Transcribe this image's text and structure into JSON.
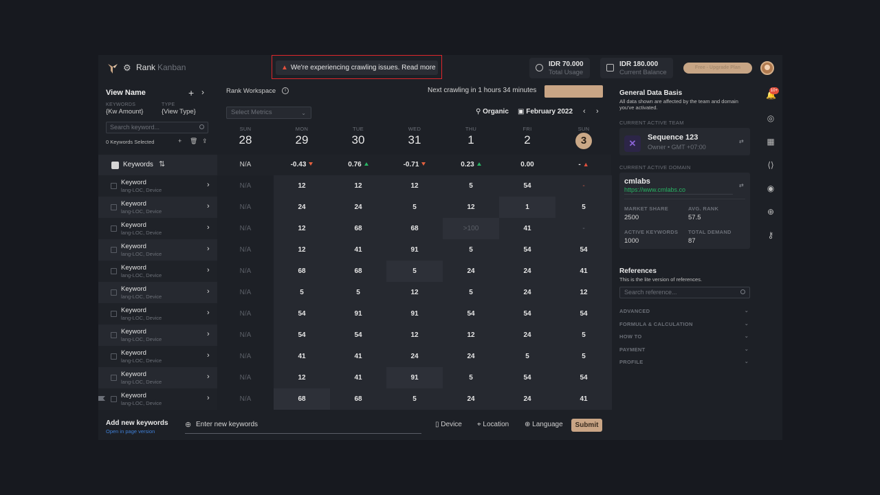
{
  "app": {
    "title": "Rank",
    "subtitle": "Kanban"
  },
  "alert": {
    "text": "We're experiencing crawling issues. Read more"
  },
  "usage": {
    "total": {
      "amount": "IDR 70.000",
      "label": "Total Usage"
    },
    "balance": {
      "amount": "IDR 180.000",
      "label": "Current Balance"
    }
  },
  "upgrade_label": "Free - Upgrade Plan",
  "left": {
    "view_name": "View Name",
    "keywords_label": "KEYWORDS",
    "keywords_value": "{Kw Amount}",
    "type_label": "TYPE",
    "type_value": "{View Type}",
    "search_placeholder": "Search keyword...",
    "selected": "0 Keywords Selected",
    "header": "Keywords"
  },
  "keywords": [
    {
      "name": "Keyword",
      "meta": "lang-LOC, Device"
    },
    {
      "name": "Keyword",
      "meta": "lang-LOC, Device"
    },
    {
      "name": "Keyword",
      "meta": "lang-LOC, Device"
    },
    {
      "name": "Keyword",
      "meta": "lang-LOC, Device"
    },
    {
      "name": "Keyword",
      "meta": "lang-LOC, Device"
    },
    {
      "name": "Keyword",
      "meta": "lang-LOC, Device"
    },
    {
      "name": "Keyword",
      "meta": "lang-LOC, Device"
    },
    {
      "name": "Keyword",
      "meta": "lang-LOC, Device"
    },
    {
      "name": "Keyword",
      "meta": "lang-LOC, Device"
    },
    {
      "name": "Keyword",
      "meta": "lang-LOC, Device"
    },
    {
      "name": "Keyword",
      "meta": "lang-LOC, Device"
    }
  ],
  "workspace": {
    "title": "Rank Workspace",
    "next_crawl": "Next crawling in 1 hours 34 minutes",
    "select_metrics": "Select Metrics",
    "type": "Organic",
    "month": "February 2022"
  },
  "days": [
    {
      "name": "SUN",
      "date": "28"
    },
    {
      "name": "MON",
      "date": "29"
    },
    {
      "name": "TUE",
      "date": "30"
    },
    {
      "name": "WED",
      "date": "31"
    },
    {
      "name": "THU",
      "date": "1"
    },
    {
      "name": "FRI",
      "date": "2"
    },
    {
      "name": "SUN",
      "date": "3"
    }
  ],
  "summary": [
    "N/A",
    "-0.43",
    "0.76",
    "-0.71",
    "0.23",
    "0.00",
    "-"
  ],
  "summary_trend": [
    "none",
    "down",
    "up",
    "down",
    "up",
    "none",
    "warn"
  ],
  "grid": [
    [
      "N/A",
      "12",
      "12",
      "12",
      "5",
      "54",
      "-"
    ],
    [
      "N/A",
      "24",
      "24",
      "5",
      "12",
      "1",
      "5"
    ],
    [
      "N/A",
      "12",
      "68",
      "68",
      ">100",
      "41",
      "-"
    ],
    [
      "N/A",
      "12",
      "41",
      "91",
      "5",
      "54",
      "54"
    ],
    [
      "N/A",
      "68",
      "68",
      "5",
      "24",
      "24",
      "41"
    ],
    [
      "N/A",
      "5",
      "5",
      "12",
      "5",
      "24",
      "12"
    ],
    [
      "N/A",
      "54",
      "91",
      "91",
      "54",
      "54",
      "54"
    ],
    [
      "N/A",
      "54",
      "54",
      "12",
      "12",
      "24",
      "5"
    ],
    [
      "N/A",
      "41",
      "41",
      "24",
      "24",
      "5",
      "5"
    ],
    [
      "N/A",
      "12",
      "41",
      "91",
      "5",
      "54",
      "54"
    ],
    [
      "N/A",
      "68",
      "68",
      "5",
      "24",
      "24",
      "41"
    ]
  ],
  "bottom": {
    "add_title": "Add new keywords",
    "open_page": "Open in page version",
    "input_placeholder": "Enter new keywords",
    "device": "Device",
    "location": "Location",
    "language": "Language",
    "submit": "Submit"
  },
  "right": {
    "title": "General Data Basis",
    "desc": "All data shown are affected by the team and domain you've activated.",
    "team_section": "CURRENT ACTIVE TEAM",
    "team_name": "Sequence 123",
    "team_sub": "Owner • GMT +07:00",
    "domain_section": "CURRENT ACTIVE DOMAIN",
    "domain_name": "cmlabs",
    "domain_url": "https://www.cmlabs.co",
    "stats": [
      {
        "label": "MARKET SHARE",
        "value": "2500"
      },
      {
        "label": "AVG. RANK",
        "value": "57.5"
      },
      {
        "label": "ACTIVE KEYWORDS",
        "value": "1000"
      },
      {
        "label": "TOTAL DEMAND",
        "value": "87"
      }
    ],
    "ref_title": "References",
    "ref_desc": "This is the lite version of references.",
    "ref_placeholder": "Search reference...",
    "accordion": [
      "ADVANCED",
      "FORMULA & CALCULATION",
      "HOW TO",
      "PAYMENT",
      "PROFILE"
    ]
  },
  "notification_badge": "10+",
  "colors": {
    "accent": "#c9a585",
    "up": "#28b463",
    "down": "#e4603e",
    "alert_border": "#e0262b"
  }
}
